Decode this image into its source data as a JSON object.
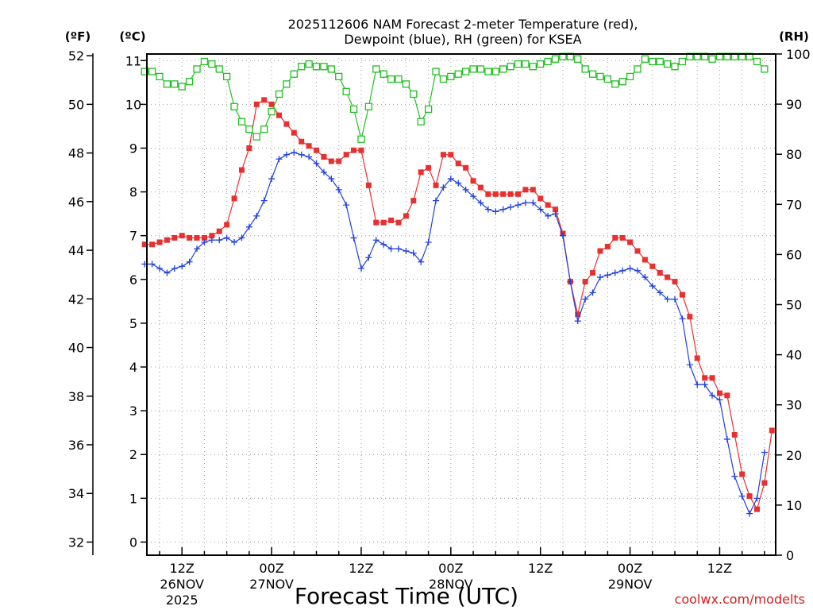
{
  "chart_data": {
    "type": "line",
    "title_line1": "2025112606 NAM Forecast 2-meter Temperature (red),",
    "title_line2": "Dewpoint (blue), RH (green) for KSEA",
    "xlabel": "Forecast Time (UTC)",
    "credit": "coolwx.com/modelts",
    "axis_labels": {
      "f": "(ºF)",
      "c": "(ºC)",
      "rh": "(RH)"
    },
    "celsius_range": [
      -0.3,
      11.15
    ],
    "rh_range": [
      0,
      100
    ],
    "hour_range": [
      7.3,
      91.5
    ],
    "celsius_ticks": [
      "0",
      "1",
      "2",
      "3",
      "4",
      "5",
      "6",
      "7",
      "8",
      "9",
      "10",
      "11"
    ],
    "fahrenheit_ticks": [
      "32",
      "34",
      "36",
      "38",
      "40",
      "42",
      "44",
      "46",
      "48",
      "50",
      "52"
    ],
    "rh_ticks": [
      "0",
      "10",
      "20",
      "30",
      "40",
      "50",
      "60",
      "70",
      "80",
      "90",
      "100"
    ],
    "x_ticks": [
      {
        "hour": 12,
        "lines": [
          "12Z",
          "26NOV",
          "2025"
        ]
      },
      {
        "hour": 24,
        "lines": [
          "00Z",
          "27NOV"
        ]
      },
      {
        "hour": 36,
        "lines": [
          "12Z"
        ]
      },
      {
        "hour": 48,
        "lines": [
          "00Z",
          "28NOV"
        ]
      },
      {
        "hour": 60,
        "lines": [
          "12Z"
        ]
      },
      {
        "hour": 72,
        "lines": [
          "00Z",
          "29NOV"
        ]
      },
      {
        "hour": 84,
        "lines": [
          "12Z"
        ]
      }
    ],
    "series": [
      {
        "name": "Temperature",
        "color": "#e83030",
        "marker": "square",
        "points": [
          [
            7,
            6.8
          ],
          [
            8,
            6.8
          ],
          [
            9,
            6.85
          ],
          [
            10,
            6.9
          ],
          [
            11,
            6.95
          ],
          [
            12,
            7.0
          ],
          [
            13,
            6.95
          ],
          [
            14,
            6.95
          ],
          [
            15,
            6.95
          ],
          [
            16,
            7.0
          ],
          [
            17,
            7.1
          ],
          [
            18,
            7.25
          ],
          [
            19,
            7.85
          ],
          [
            20,
            8.5
          ],
          [
            21,
            9.0
          ],
          [
            22,
            10.0
          ],
          [
            23,
            10.1
          ],
          [
            24,
            10.0
          ],
          [
            25,
            9.75
          ],
          [
            26,
            9.55
          ],
          [
            27,
            9.35
          ],
          [
            28,
            9.15
          ],
          [
            29,
            9.05
          ],
          [
            30,
            8.95
          ],
          [
            31,
            8.8
          ],
          [
            32,
            8.7
          ],
          [
            33,
            8.7
          ],
          [
            34,
            8.85
          ],
          [
            35,
            8.95
          ],
          [
            36,
            8.95
          ],
          [
            37,
            8.15
          ],
          [
            38,
            7.3
          ],
          [
            39,
            7.3
          ],
          [
            40,
            7.35
          ],
          [
            41,
            7.3
          ],
          [
            42,
            7.45
          ],
          [
            43,
            7.8
          ],
          [
            44,
            8.45
          ],
          [
            45,
            8.55
          ],
          [
            46,
            8.15
          ],
          [
            47,
            8.85
          ],
          [
            48,
            8.85
          ],
          [
            49,
            8.65
          ],
          [
            50,
            8.55
          ],
          [
            51,
            8.25
          ],
          [
            52,
            8.1
          ],
          [
            53,
            7.95
          ],
          [
            54,
            7.95
          ],
          [
            55,
            7.95
          ],
          [
            56,
            7.95
          ],
          [
            57,
            7.95
          ],
          [
            58,
            8.05
          ],
          [
            59,
            8.05
          ],
          [
            60,
            7.85
          ],
          [
            61,
            7.7
          ],
          [
            62,
            7.6
          ],
          [
            63,
            7.05
          ],
          [
            64,
            5.95
          ],
          [
            65,
            5.2
          ],
          [
            66,
            5.95
          ],
          [
            67,
            6.15
          ],
          [
            68,
            6.65
          ],
          [
            69,
            6.75
          ],
          [
            70,
            6.95
          ],
          [
            71,
            6.95
          ],
          [
            72,
            6.85
          ],
          [
            73,
            6.65
          ],
          [
            74,
            6.45
          ],
          [
            75,
            6.3
          ],
          [
            76,
            6.15
          ],
          [
            77,
            6.05
          ],
          [
            78,
            5.95
          ],
          [
            79,
            5.65
          ],
          [
            80,
            5.15
          ],
          [
            81,
            4.2
          ],
          [
            82,
            3.75
          ],
          [
            83,
            3.75
          ],
          [
            84,
            3.4
          ],
          [
            85,
            3.35
          ],
          [
            86,
            2.45
          ],
          [
            87,
            1.55
          ],
          [
            88,
            1.05
          ],
          [
            89,
            0.75
          ],
          [
            90,
            1.35
          ],
          [
            91,
            2.55
          ]
        ]
      },
      {
        "name": "Dewpoint",
        "color": "#2040e0",
        "marker": "plus",
        "points": [
          [
            7,
            6.35
          ],
          [
            8,
            6.35
          ],
          [
            9,
            6.25
          ],
          [
            10,
            6.15
          ],
          [
            11,
            6.25
          ],
          [
            12,
            6.3
          ],
          [
            13,
            6.4
          ],
          [
            14,
            6.7
          ],
          [
            15,
            6.85
          ],
          [
            16,
            6.9
          ],
          [
            17,
            6.9
          ],
          [
            18,
            6.95
          ],
          [
            19,
            6.85
          ],
          [
            20,
            6.95
          ],
          [
            21,
            7.2
          ],
          [
            22,
            7.45
          ],
          [
            23,
            7.8
          ],
          [
            24,
            8.3
          ],
          [
            25,
            8.75
          ],
          [
            26,
            8.85
          ],
          [
            27,
            8.9
          ],
          [
            28,
            8.85
          ],
          [
            29,
            8.8
          ],
          [
            30,
            8.65
          ],
          [
            31,
            8.45
          ],
          [
            32,
            8.3
          ],
          [
            33,
            8.05
          ],
          [
            34,
            7.7
          ],
          [
            35,
            6.95
          ],
          [
            36,
            6.25
          ],
          [
            37,
            6.5
          ],
          [
            38,
            6.9
          ],
          [
            39,
            6.8
          ],
          [
            40,
            6.7
          ],
          [
            41,
            6.7
          ],
          [
            42,
            6.65
          ],
          [
            43,
            6.6
          ],
          [
            44,
            6.4
          ],
          [
            45,
            6.85
          ],
          [
            46,
            7.8
          ],
          [
            47,
            8.1
          ],
          [
            48,
            8.3
          ],
          [
            49,
            8.2
          ],
          [
            50,
            8.05
          ],
          [
            51,
            7.9
          ],
          [
            52,
            7.75
          ],
          [
            53,
            7.6
          ],
          [
            54,
            7.55
          ],
          [
            55,
            7.6
          ],
          [
            56,
            7.65
          ],
          [
            57,
            7.7
          ],
          [
            58,
            7.75
          ],
          [
            59,
            7.75
          ],
          [
            60,
            7.6
          ],
          [
            61,
            7.45
          ],
          [
            62,
            7.5
          ],
          [
            63,
            7.0
          ],
          [
            64,
            5.95
          ],
          [
            65,
            5.05
          ],
          [
            66,
            5.55
          ],
          [
            67,
            5.7
          ],
          [
            68,
            6.05
          ],
          [
            69,
            6.1
          ],
          [
            70,
            6.15
          ],
          [
            71,
            6.2
          ],
          [
            72,
            6.25
          ],
          [
            73,
            6.2
          ],
          [
            74,
            6.05
          ],
          [
            75,
            5.85
          ],
          [
            76,
            5.7
          ],
          [
            77,
            5.55
          ],
          [
            78,
            5.55
          ],
          [
            79,
            5.1
          ],
          [
            80,
            4.05
          ],
          [
            81,
            3.6
          ],
          [
            82,
            3.6
          ],
          [
            83,
            3.35
          ],
          [
            84,
            3.25
          ],
          [
            85,
            2.35
          ],
          [
            86,
            1.5
          ],
          [
            87,
            1.05
          ],
          [
            88,
            0.65
          ],
          [
            89,
            1.0
          ],
          [
            90,
            2.05
          ]
        ]
      },
      {
        "name": "RH",
        "color": "#20c020",
        "marker": "open-square",
        "points": [
          [
            7,
            96.5
          ],
          [
            8,
            96.5
          ],
          [
            9,
            95.5
          ],
          [
            10,
            94
          ],
          [
            11,
            94
          ],
          [
            12,
            93.5
          ],
          [
            13,
            94.5
          ],
          [
            14,
            97
          ],
          [
            15,
            98.5
          ],
          [
            16,
            98
          ],
          [
            17,
            97
          ],
          [
            18,
            95.5
          ],
          [
            19,
            89.5
          ],
          [
            20,
            86.5
          ],
          [
            21,
            85
          ],
          [
            22,
            83.5
          ],
          [
            23,
            85
          ],
          [
            24,
            88.5
          ],
          [
            25,
            92
          ],
          [
            26,
            94
          ],
          [
            27,
            96
          ],
          [
            28,
            97.5
          ],
          [
            29,
            98
          ],
          [
            30,
            97.5
          ],
          [
            31,
            97.5
          ],
          [
            32,
            97
          ],
          [
            33,
            95.5
          ],
          [
            34,
            92.5
          ],
          [
            35,
            89
          ],
          [
            36,
            83
          ],
          [
            37,
            89.5
          ],
          [
            38,
            97
          ],
          [
            39,
            96
          ],
          [
            40,
            95
          ],
          [
            41,
            95
          ],
          [
            42,
            94
          ],
          [
            43,
            92
          ],
          [
            44,
            86.5
          ],
          [
            45,
            89
          ],
          [
            46,
            96.5
          ],
          [
            47,
            95
          ],
          [
            48,
            95.5
          ],
          [
            49,
            96
          ],
          [
            50,
            96.5
          ],
          [
            51,
            97
          ],
          [
            52,
            97
          ],
          [
            53,
            96.5
          ],
          [
            54,
            96.5
          ],
          [
            55,
            97
          ],
          [
            56,
            97.5
          ],
          [
            57,
            98
          ],
          [
            58,
            98
          ],
          [
            59,
            97.5
          ],
          [
            60,
            98
          ],
          [
            61,
            98.5
          ],
          [
            62,
            99
          ],
          [
            63,
            99.5
          ],
          [
            64,
            99.5
          ],
          [
            65,
            99
          ],
          [
            66,
            97
          ],
          [
            67,
            96
          ],
          [
            68,
            95.5
          ],
          [
            69,
            95
          ],
          [
            70,
            94
          ],
          [
            71,
            94.5
          ],
          [
            72,
            95.5
          ],
          [
            73,
            97
          ],
          [
            74,
            99
          ],
          [
            75,
            98.5
          ],
          [
            76,
            98.5
          ],
          [
            77,
            98
          ],
          [
            78,
            97.5
          ],
          [
            79,
            98.5
          ],
          [
            80,
            99.5
          ],
          [
            81,
            99.5
          ],
          [
            82,
            99.5
          ],
          [
            83,
            99
          ],
          [
            84,
            99.5
          ],
          [
            85,
            99.5
          ],
          [
            86,
            99.5
          ],
          [
            87,
            99.5
          ],
          [
            88,
            99.5
          ],
          [
            89,
            98.5
          ],
          [
            90,
            97
          ]
        ]
      }
    ]
  }
}
